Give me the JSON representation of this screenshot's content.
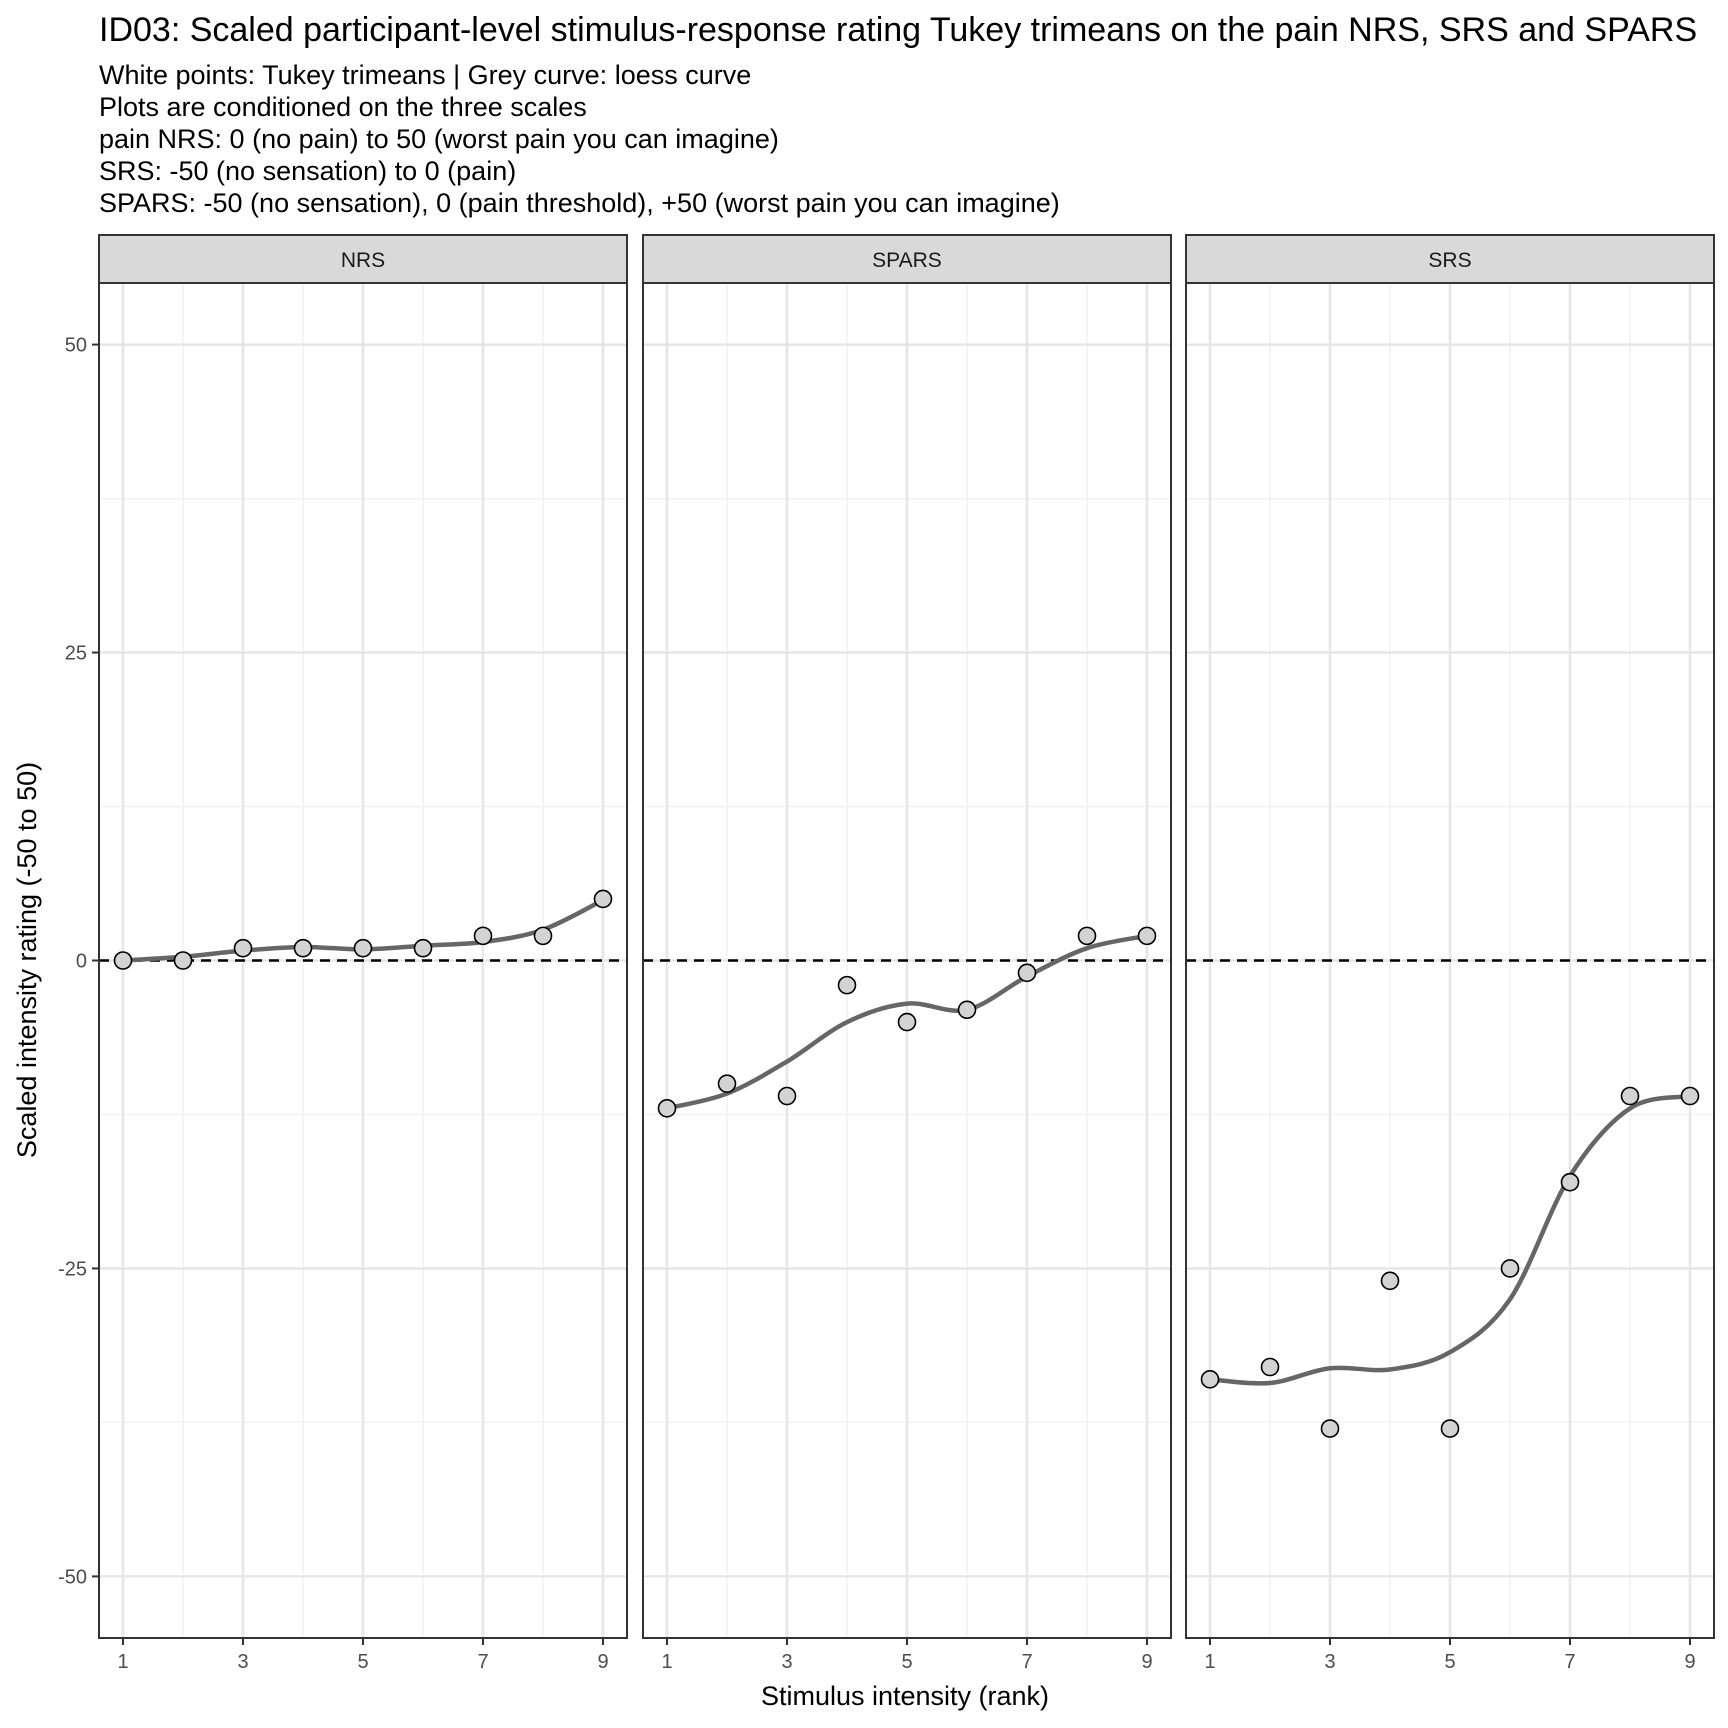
{
  "chart_data": {
    "type": "scatter",
    "title": "ID03: Scaled participant-level stimulus-response rating Tukey trimeans on the pain NRS, SRS and SPARS",
    "subtitle_lines": [
      "White points: Tukey trimeans | Grey curve: loess curve",
      "Plots are conditioned on the three scales",
      "pain NRS: 0 (no pain) to 50 (worst pain you can imagine)",
      "SRS: -50 (no sensation) to 0 (pain)",
      "SPARS: -50 (no sensation), 0 (pain threshold), +50 (worst pain you can imagine)"
    ],
    "xlabel": "Stimulus intensity (rank)",
    "ylabel": "Scaled intensity rating (-50 to 50)",
    "xlim": [
      0.6,
      9.4
    ],
    "ylim": [
      -55,
      55
    ],
    "x_ticks": [
      1,
      3,
      5,
      7,
      9
    ],
    "y_ticks": [
      50,
      25,
      0,
      -25,
      -50
    ],
    "reference_line_y": 0,
    "panels": [
      {
        "name": "NRS",
        "points": [
          [
            1,
            0
          ],
          [
            2,
            0
          ],
          [
            3,
            1
          ],
          [
            4,
            1
          ],
          [
            5,
            1
          ],
          [
            6,
            1
          ],
          [
            7,
            2
          ],
          [
            8,
            2
          ],
          [
            9,
            5
          ]
        ],
        "loess": [
          [
            1,
            0
          ],
          [
            2,
            0.3
          ],
          [
            3,
            0.8
          ],
          [
            4,
            1.1
          ],
          [
            5,
            0.9
          ],
          [
            6,
            1.2
          ],
          [
            7,
            1.5
          ],
          [
            8,
            2.5
          ],
          [
            9,
            4.9
          ]
        ]
      },
      {
        "name": "SPARS",
        "points": [
          [
            1,
            -12
          ],
          [
            2,
            -10
          ],
          [
            3,
            -11
          ],
          [
            4,
            -2
          ],
          [
            5,
            -5
          ],
          [
            6,
            -4
          ],
          [
            7,
            -1
          ],
          [
            8,
            2
          ],
          [
            9,
            2
          ]
        ],
        "loess": [
          [
            1,
            -12
          ],
          [
            2,
            -10.8
          ],
          [
            3,
            -8.2
          ],
          [
            4,
            -5
          ],
          [
            5,
            -3.5
          ],
          [
            6,
            -4
          ],
          [
            7,
            -1.3
          ],
          [
            8,
            1
          ],
          [
            9,
            2
          ]
        ]
      },
      {
        "name": "SRS",
        "points": [
          [
            1,
            -34
          ],
          [
            2,
            -33
          ],
          [
            3,
            -38
          ],
          [
            4,
            -26
          ],
          [
            5,
            -38
          ],
          [
            6,
            -25
          ],
          [
            7,
            -18
          ],
          [
            8,
            -11
          ],
          [
            9,
            -11
          ]
        ],
        "loess": [
          [
            1,
            -34
          ],
          [
            2,
            -34.3
          ],
          [
            3,
            -33.1
          ],
          [
            4,
            -33.2
          ],
          [
            5,
            -31.8
          ],
          [
            6,
            -27.5
          ],
          [
            7,
            -17.5
          ],
          [
            8,
            -12
          ],
          [
            9,
            -11
          ]
        ]
      }
    ]
  }
}
